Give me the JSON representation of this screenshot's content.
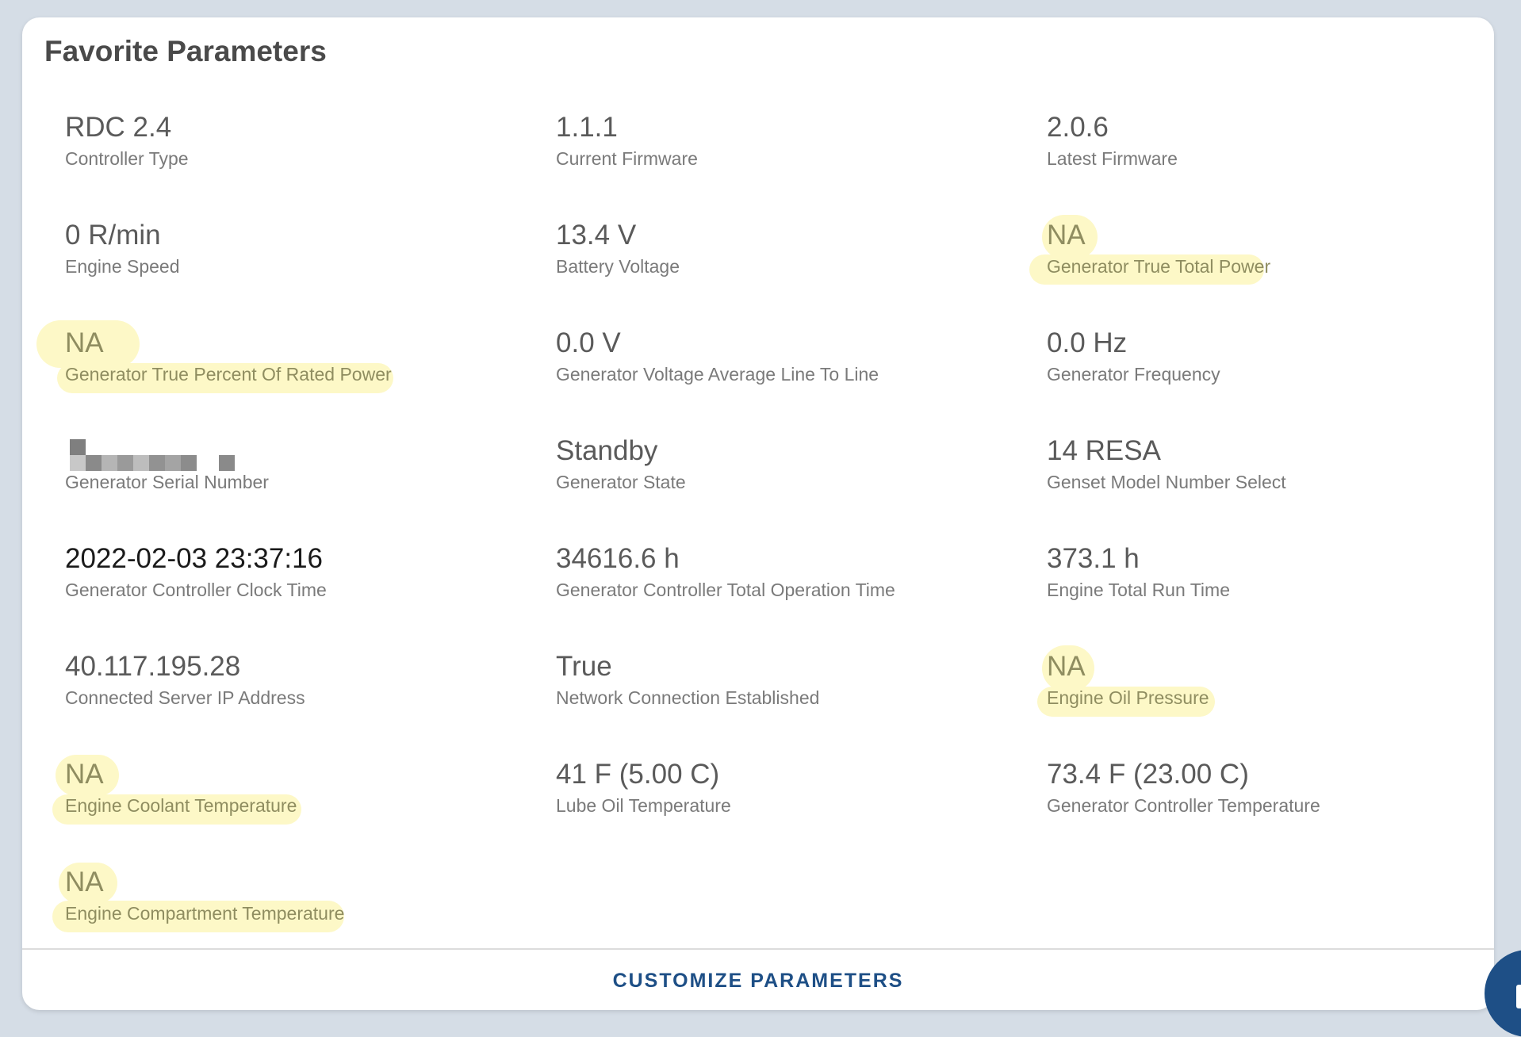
{
  "card": {
    "title": "Favorite Parameters",
    "customize_label": "CUSTOMIZE PARAMETERS"
  },
  "highlight_color": "#fdf8c7",
  "accent_color": "#1e4f86",
  "params": [
    {
      "value": "RDC 2.4",
      "label": "Controller Type",
      "highlighted": false
    },
    {
      "value": "1.1.1",
      "label": "Current Firmware",
      "highlighted": false
    },
    {
      "value": "2.0.6",
      "label": "Latest Firmware",
      "highlighted": false
    },
    {
      "value": "0 R/min",
      "label": "Engine Speed",
      "highlighted": false
    },
    {
      "value": "13.4 V",
      "label": "Battery Voltage",
      "highlighted": false
    },
    {
      "value": "NA",
      "label": "Generator True Total Power",
      "highlighted": true
    },
    {
      "value": "NA",
      "label": "Generator True Percent Of Rated Power",
      "highlighted": true
    },
    {
      "value": "0.0 V",
      "label": "Generator Voltage Average Line To Line",
      "highlighted": false
    },
    {
      "value": "0.0 Hz",
      "label": "Generator Frequency",
      "highlighted": false
    },
    {
      "value": "",
      "label": "Generator Serial Number",
      "highlighted": false,
      "redacted": true
    },
    {
      "value": "Standby",
      "label": "Generator State",
      "highlighted": false
    },
    {
      "value": "14 RESA",
      "label": "Genset Model Number Select",
      "highlighted": false
    },
    {
      "value": "2022-02-03 23:37:16",
      "label": "Generator Controller Clock Time",
      "highlighted": false
    },
    {
      "value": "34616.6 h",
      "label": "Generator Controller Total Operation Time",
      "highlighted": false
    },
    {
      "value": "373.1 h",
      "label": "Engine Total Run Time",
      "highlighted": false
    },
    {
      "value": "40.117.195.28",
      "label": "Connected Server IP Address",
      "highlighted": false
    },
    {
      "value": "True",
      "label": "Network Connection Established",
      "highlighted": false
    },
    {
      "value": "NA",
      "label": "Engine Oil Pressure",
      "highlighted": true
    },
    {
      "value": "NA",
      "label": "Engine Coolant Temperature",
      "highlighted": true
    },
    {
      "value": "41 F (5.00 C)",
      "label": "Lube Oil Temperature",
      "highlighted": false
    },
    {
      "value": "73.4 F (23.00 C)",
      "label": "Generator Controller Temperature",
      "highlighted": false
    },
    {
      "value": "NA",
      "label": "Engine Compartment Temperature",
      "highlighted": true
    }
  ]
}
